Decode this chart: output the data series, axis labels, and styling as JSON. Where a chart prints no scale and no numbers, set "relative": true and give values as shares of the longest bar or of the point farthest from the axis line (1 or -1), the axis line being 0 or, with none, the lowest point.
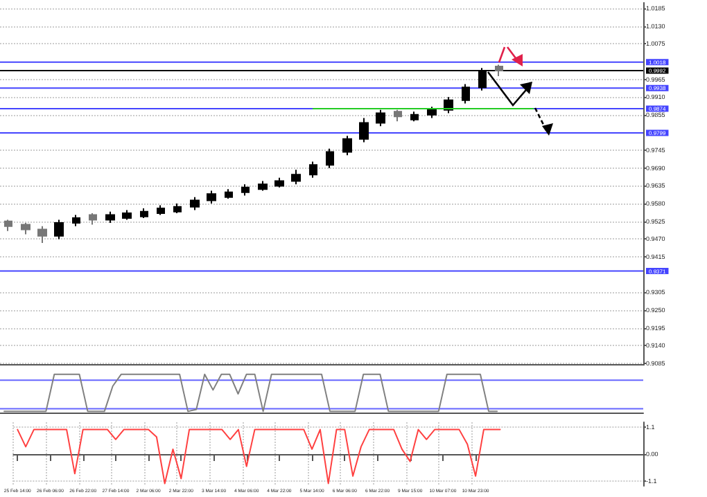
{
  "chart_data": [
    {
      "type": "candlestick",
      "categories": [
        null,
        null,
        null,
        null,
        null,
        null,
        null,
        null,
        null,
        null,
        null,
        null,
        null,
        null,
        null,
        null,
        null,
        null,
        null,
        null,
        null,
        null,
        null,
        null,
        null,
        null,
        null,
        null,
        null,
        null,
        null,
        null,
        null,
        null,
        null,
        null,
        null,
        null
      ],
      "colors": [
        "#777777",
        "#777777",
        "#777777",
        "#000000",
        "#000000",
        "#777777",
        "#000000",
        "#000000",
        "#000000",
        "#000000",
        "#000000",
        "#000000",
        "#000000",
        "#000000",
        "#000000",
        "#000000",
        "#000000",
        "#000000",
        "#000000",
        "#000000",
        "#000000",
        "#000000",
        "#000000",
        "#777777",
        "#000000",
        "#000000",
        "#000000",
        "#000000",
        "#000000",
        "#777777",
        null,
        null,
        null,
        null,
        null,
        null,
        null,
        null
      ],
      "ohlc": [
        [
          0.9525,
          0.953,
          0.9495,
          0.951
        ],
        [
          0.9515,
          0.952,
          0.9485,
          0.95
        ],
        [
          0.95,
          0.951,
          0.9458,
          0.948
        ],
        [
          0.948,
          0.953,
          0.947,
          0.952
        ],
        [
          0.952,
          0.9545,
          0.951,
          0.9535
        ],
        [
          0.9545,
          0.955,
          0.9515,
          0.953
        ],
        [
          0.953,
          0.9555,
          0.952,
          0.9545
        ],
        [
          0.9535,
          0.956,
          0.953,
          0.955
        ],
        [
          0.954,
          0.9565,
          0.9535,
          0.9555
        ],
        [
          0.955,
          0.9575,
          0.9545,
          0.9565
        ],
        [
          0.9555,
          0.958,
          0.955,
          0.957
        ],
        [
          0.957,
          0.96,
          0.956,
          0.959
        ],
        [
          0.959,
          0.962,
          0.958,
          0.961
        ],
        [
          0.96,
          0.9625,
          0.9595,
          0.9615
        ],
        [
          0.9615,
          0.964,
          0.9605,
          0.963
        ],
        [
          0.9625,
          0.965,
          0.962,
          0.964
        ],
        [
          0.9635,
          0.966,
          0.963,
          0.965
        ],
        [
          0.965,
          0.9685,
          0.964,
          0.967
        ],
        [
          0.967,
          0.971,
          0.966,
          0.97
        ],
        [
          0.97,
          0.975,
          0.969,
          0.974
        ],
        [
          0.974,
          0.979,
          0.973,
          0.978
        ],
        [
          0.978,
          0.9845,
          0.977,
          0.983
        ],
        [
          0.983,
          0.987,
          0.982,
          0.986
        ],
        [
          0.9865,
          0.987,
          0.9835,
          0.985
        ],
        [
          0.984,
          0.9865,
          0.9835,
          0.9855
        ],
        [
          0.9855,
          0.988,
          0.9845,
          0.987
        ],
        [
          0.987,
          0.991,
          0.986,
          0.99
        ],
        [
          0.99,
          0.995,
          0.989,
          0.994
        ],
        [
          0.994,
          1.0,
          0.993,
          0.999
        ],
        [
          1.0005,
          1.001,
          0.9975,
          0.9992
        ],
        null,
        null,
        null,
        null,
        null,
        null,
        null,
        null
      ],
      "series": [
        {
          "type": "line",
          "color": "#22cc22",
          "values": [
            null,
            null,
            null,
            null,
            null,
            null,
            null,
            null,
            null,
            null,
            null,
            null,
            null,
            null,
            null,
            null,
            null,
            null,
            0.9874,
            0.9874,
            0.9874,
            0.9874,
            0.9874,
            0.9874,
            0.9874,
            0.9874,
            0.9874,
            0.9874,
            0.9874,
            0.9874,
            0.9874,
            0.9874,
            null,
            null,
            null,
            null,
            null,
            null
          ]
        }
      ],
      "marker": "none",
      "ylim": [
        0.908,
        1.0202
      ],
      "yticks": [
        {
          "value": 1.0185,
          "label": "1.0185"
        },
        {
          "value": 1.013,
          "label": "1.0130"
        },
        {
          "value": 1.0075,
          "label": "1.0075"
        },
        {
          "value": 0.9965,
          "label": "0.9965"
        },
        {
          "value": 0.991,
          "label": "0.9910"
        },
        {
          "value": 0.9855,
          "label": "0.9855"
        },
        {
          "value": 0.9745,
          "label": "0.9745"
        },
        {
          "value": 0.969,
          "label": "0.9690"
        },
        {
          "value": 0.9635,
          "label": "0.9635"
        },
        {
          "value": 0.958,
          "label": "0.9580"
        },
        {
          "value": 0.9525,
          "label": "0.9525"
        },
        {
          "value": 0.947,
          "label": "0.9470"
        },
        {
          "value": 0.9415,
          "label": "0.9415"
        },
        {
          "value": 0.9305,
          "label": "0.9305"
        },
        {
          "value": 0.925,
          "label": "0.9250"
        },
        {
          "value": 0.9195,
          "label": "0.9195"
        },
        {
          "value": 0.914,
          "label": "0.9140"
        },
        {
          "value": 0.9085,
          "label": "0.9085"
        }
      ],
      "ref_lines": [
        {
          "axis": "y",
          "value": 1.0018,
          "label": "1.0018",
          "color": "#4444ff"
        },
        {
          "axis": "y",
          "value": 0.9992,
          "label": "0.9992",
          "color": "#000000"
        },
        {
          "axis": "y",
          "value": 0.9938,
          "label": "0.9938",
          "color": "#4444ff"
        },
        {
          "axis": "y",
          "value": 0.9874,
          "label": "0.9874",
          "color": "#4444ff"
        },
        {
          "axis": "y",
          "value": 0.9799,
          "label": "0.9799",
          "color": "#4444ff"
        },
        {
          "axis": "y",
          "value": 0.9371,
          "label": "0.9371",
          "color": "#4444ff"
        }
      ],
      "grid": true,
      "tick_labels": "y"
    },
    {
      "type": "line",
      "relative": true,
      "categories": [
        null,
        null,
        null,
        null,
        null,
        null,
        null,
        null,
        null,
        null,
        null,
        null,
        null,
        null,
        null,
        null,
        null,
        null,
        null,
        null,
        null,
        null,
        null,
        null,
        null,
        null,
        null,
        null,
        null,
        null,
        null,
        null,
        null,
        null,
        null,
        null,
        null,
        null,
        null,
        null,
        null,
        null,
        null,
        null,
        null,
        null,
        null,
        null,
        null,
        null,
        null,
        null,
        null,
        null,
        null,
        null,
        null,
        null,
        null,
        null,
        null,
        null,
        null,
        null,
        null,
        null,
        null,
        null,
        null,
        null,
        null,
        null,
        null,
        null,
        null,
        null,
        null
      ],
      "series": [
        {
          "color": "#808080",
          "values": [
            0.05,
            0.05,
            0.05,
            0.05,
            0.05,
            0.05,
            1,
            1,
            1,
            1,
            0.05,
            0.05,
            0.05,
            0.7,
            1,
            1,
            1,
            1,
            1,
            1,
            1,
            1,
            0.05,
            0.1,
            1,
            0.6,
            1,
            1,
            0.5,
            1,
            1,
            0.05,
            1,
            1,
            1,
            1,
            1,
            1,
            1,
            0.05,
            0.05,
            0.05,
            0.05,
            1,
            1,
            1,
            0.05,
            0.05,
            0.05,
            0.05,
            0.05,
            0.05,
            0.05,
            1,
            1,
            1,
            1,
            1,
            0.05,
            0.05,
            null,
            null,
            null,
            null,
            null,
            null,
            null,
            null,
            null,
            null,
            null,
            null,
            null,
            null,
            null,
            null,
            null
          ]
        }
      ],
      "ref_lines": [
        {
          "axis": "y",
          "value": 0.85,
          "color": "#6666ff"
        },
        {
          "axis": "y",
          "value": 0.12,
          "color": "#6666ff"
        }
      ],
      "marker": "none",
      "grid": true,
      "tick_labels": false
    },
    {
      "type": "line",
      "categories": [
        "25 Feb 14:00",
        null,
        null,
        null,
        "26 Feb 06:00",
        null,
        null,
        null,
        "26 Feb 22:00",
        null,
        null,
        null,
        "27 Feb 14:00",
        null,
        null,
        null,
        "2 Mar 06:00",
        null,
        null,
        null,
        "2 Mar 22:00",
        null,
        null,
        null,
        "3 Mar 14:00",
        null,
        null,
        null,
        "4 Mar 06:00",
        null,
        null,
        null,
        "4 Mar 22:00",
        null,
        null,
        null,
        "5 Mar 14:00",
        null,
        null,
        null,
        "6 Mar 06:00",
        null,
        null,
        null,
        "6 Mar 22:00",
        null,
        null,
        null,
        "9 Mar 15:00",
        null,
        null,
        null,
        "10 Mar 07:00",
        null,
        null,
        null,
        "10 Mar 23:00",
        null,
        null,
        null,
        null,
        null,
        null,
        null,
        null,
        null,
        null,
        null,
        null,
        null,
        null,
        null,
        null,
        null,
        null,
        null,
        null
      ],
      "series": [
        {
          "color": "#ff4040",
          "values": [
            1,
            0.3,
            1,
            1,
            1,
            1,
            1,
            -0.8,
            1,
            1,
            1,
            1,
            0.6,
            1,
            1,
            1,
            1,
            0.7,
            -1.2,
            0.2,
            -1.0,
            1,
            1,
            1,
            1,
            1,
            0.6,
            1,
            -0.5,
            1,
            1,
            1,
            1,
            1,
            1,
            1,
            0.2,
            1,
            -1.2,
            1,
            1,
            -0.9,
            0.3,
            1,
            1,
            1,
            1,
            0.2,
            -0.3,
            1,
            0.6,
            1,
            1,
            1,
            1,
            0.4,
            -0.9,
            1,
            1,
            1,
            null,
            null,
            null,
            null,
            null,
            null,
            null,
            null,
            null,
            null,
            null,
            null,
            null,
            null,
            null,
            null,
            null
          ]
        }
      ],
      "ylim": [
        -1.3,
        1.3
      ],
      "yticks": [
        1.1,
        {
          "value": 0,
          "label": "0.00"
        },
        -1.1
      ],
      "marker": "none",
      "grid": true
    }
  ]
}
